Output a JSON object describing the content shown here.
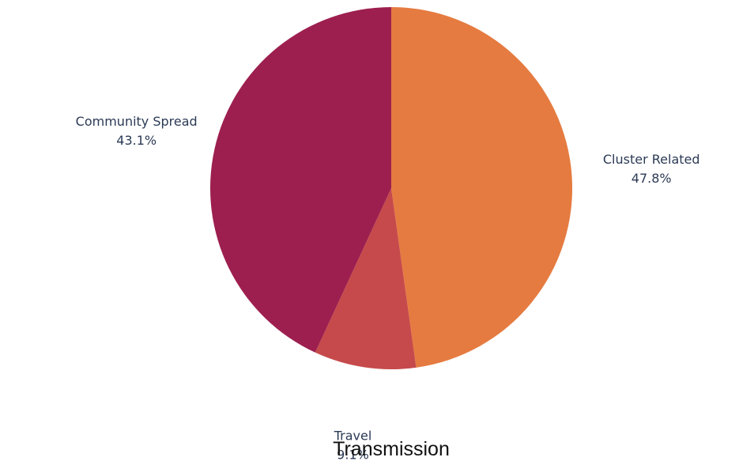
{
  "chart_data": {
    "type": "pie",
    "title": "Transmission",
    "slices": [
      {
        "label": "Cluster Related",
        "value": 47.8,
        "display": "47.8%",
        "color": "#e57b40"
      },
      {
        "label": "Travel",
        "value": 9.1,
        "display": "9.1%",
        "color": "#c64a4b"
      },
      {
        "label": "Community Spread",
        "value": 43.1,
        "display": "43.1%",
        "color": "#9d1f4f"
      }
    ],
    "start_angle_deg": 0,
    "direction": "clockwise",
    "legend": "none"
  }
}
